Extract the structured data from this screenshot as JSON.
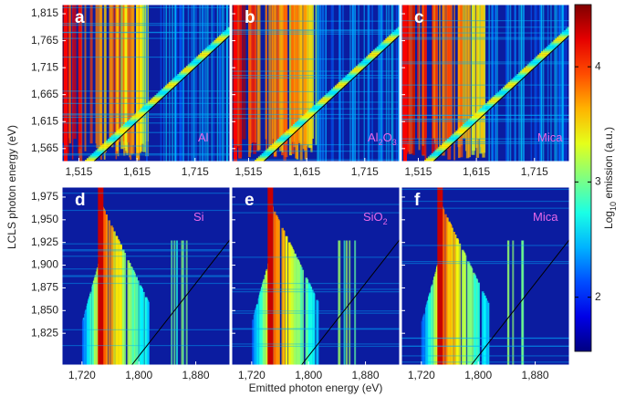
{
  "chart_data": {
    "type": "heatmap",
    "y_label": "LCLS photon energy (eV)",
    "x_label": "Emitted photon energy (eV)",
    "colorbar": {
      "label": [
        "Log",
        "10",
        " emission (a.u.)"
      ],
      "lim": [
        1.53,
        4.54
      ],
      "ticks": [
        2,
        3,
        4
      ],
      "colormap": "jet"
    },
    "rows": [
      {
        "ylim": [
          1541,
          1832
        ],
        "yticks": [
          {
            "value": 1565,
            "label": "1,565"
          },
          {
            "value": 1615,
            "label": "1,615"
          },
          {
            "value": 1665,
            "label": "1,665"
          },
          {
            "value": 1715,
            "label": "1,715"
          },
          {
            "value": 1765,
            "label": "1,765"
          },
          {
            "value": 1815,
            "label": "1,815"
          }
        ],
        "panels": [
          {
            "letter": "a",
            "sample": [
              {
                "text": "Al"
              }
            ],
            "xlim": [
              1486,
              1775
            ],
            "xticks": [
              {
                "value": 1515,
                "label": "1,515"
              },
              {
                "value": 1615,
                "label": "1,615"
              },
              {
                "value": 1715,
                "label": "1,715"
              }
            ]
          },
          {
            "letter": "b",
            "sample": [
              {
                "text": "Al"
              },
              {
                "text": "2",
                "sub": true
              },
              {
                "text": "O"
              },
              {
                "text": "3",
                "sub": true
              }
            ],
            "xlim": [
              1486,
              1775
            ],
            "xticks": [
              {
                "value": 1515,
                "label": "1,515"
              },
              {
                "value": 1615,
                "label": "1,615"
              },
              {
                "value": 1715,
                "label": "1,715"
              }
            ]
          },
          {
            "letter": "c",
            "sample": [
              {
                "text": "Mica"
              }
            ],
            "xlim": [
              1486,
              1775
            ],
            "xticks": [
              {
                "value": 1515,
                "label": "1,515"
              },
              {
                "value": 1615,
                "label": "1,615"
              },
              {
                "value": 1715,
                "label": "1,715"
              }
            ]
          }
        ]
      },
      {
        "ylim": [
          1790,
          1986
        ],
        "yticks": [
          {
            "value": 1825,
            "label": "1,825"
          },
          {
            "value": 1850,
            "label": "1,850"
          },
          {
            "value": 1875,
            "label": "1,875"
          },
          {
            "value": 1900,
            "label": "1,900"
          },
          {
            "value": 1925,
            "label": "1,925"
          },
          {
            "value": 1950,
            "label": "1,950"
          },
          {
            "value": 1975,
            "label": "1,975"
          }
        ],
        "panels": [
          {
            "letter": "d",
            "sample": [
              {
                "text": "Si"
              }
            ],
            "xlim": [
              1692,
              1928
            ],
            "xticks": [
              {
                "value": 1720,
                "label": "1,720"
              },
              {
                "value": 1800,
                "label": "1,800"
              },
              {
                "value": 1880,
                "label": "1,880"
              }
            ]
          },
          {
            "letter": "e",
            "sample": [
              {
                "text": "SiO"
              },
              {
                "text": "2",
                "sub": true
              }
            ],
            "xlim": [
              1692,
              1928
            ],
            "xticks": [
              {
                "value": 1720,
                "label": "1,720"
              },
              {
                "value": 1800,
                "label": "1,800"
              },
              {
                "value": 1880,
                "label": "1,880"
              }
            ]
          },
          {
            "letter": "f",
            "sample": [
              {
                "text": "Mica"
              }
            ],
            "xlim": [
              1692,
              1928
            ],
            "xticks": [
              {
                "value": 1720,
                "label": "1,720"
              },
              {
                "value": 1800,
                "label": "1,800"
              },
              {
                "value": 1880,
                "label": "1,880"
              }
            ]
          }
        ]
      }
    ]
  }
}
